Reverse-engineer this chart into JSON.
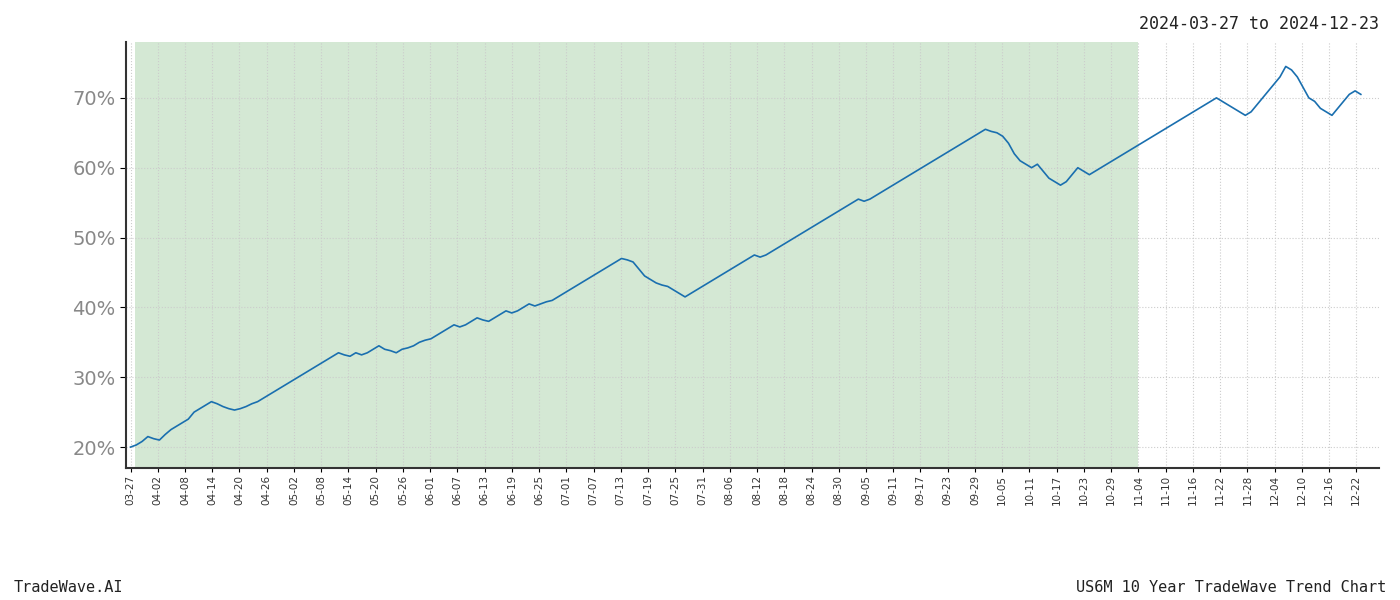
{
  "date_start": "2024-03-27",
  "date_end": "2024-12-23",
  "shade_start": "2024-03-28",
  "shade_end": "2024-11-04",
  "line_color": "#1a6faf",
  "shade_color": "#d4e8d4",
  "shade_alpha": 1.0,
  "background_color": "#ffffff",
  "grid_color": "#cccccc",
  "title_text": "2024-03-27 to 2024-12-23",
  "footer_left": "TradeWave.AI",
  "footer_right": "US6M 10 Year TradeWave Trend Chart",
  "yticks": [
    20,
    30,
    40,
    50,
    60,
    70
  ],
  "ylim": [
    17,
    78
  ],
  "line_width": 1.2,
  "font_size_title": 12,
  "font_size_footer": 11,
  "font_size_yticks": 14,
  "font_size_xticks": 7.5,
  "tick_interval_days": 6,
  "y_values": [
    20.0,
    20.3,
    20.8,
    21.5,
    21.2,
    21.0,
    21.8,
    22.5,
    23.0,
    23.5,
    24.0,
    25.0,
    25.5,
    26.0,
    26.5,
    26.2,
    25.8,
    25.5,
    25.3,
    25.5,
    25.8,
    26.2,
    26.5,
    27.0,
    27.5,
    28.0,
    28.5,
    29.0,
    29.5,
    30.0,
    30.5,
    31.0,
    31.5,
    32.0,
    32.5,
    33.0,
    33.5,
    33.2,
    33.0,
    33.5,
    33.2,
    33.5,
    34.0,
    34.5,
    34.0,
    33.8,
    33.5,
    34.0,
    34.2,
    34.5,
    35.0,
    35.3,
    35.5,
    36.0,
    36.5,
    37.0,
    37.5,
    37.2,
    37.5,
    38.0,
    38.5,
    38.2,
    38.0,
    38.5,
    39.0,
    39.5,
    39.2,
    39.5,
    40.0,
    40.5,
    40.2,
    40.5,
    40.8,
    41.0,
    41.5,
    42.0,
    42.5,
    43.0,
    43.5,
    44.0,
    44.5,
    45.0,
    45.5,
    46.0,
    46.5,
    47.0,
    46.8,
    46.5,
    45.5,
    44.5,
    44.0,
    43.5,
    43.2,
    43.0,
    42.5,
    42.0,
    41.5,
    42.0,
    42.5,
    43.0,
    43.5,
    44.0,
    44.5,
    45.0,
    45.5,
    46.0,
    46.5,
    47.0,
    47.5,
    47.2,
    47.5,
    48.0,
    48.5,
    49.0,
    49.5,
    50.0,
    50.5,
    51.0,
    51.5,
    52.0,
    52.5,
    53.0,
    53.5,
    54.0,
    54.5,
    55.0,
    55.5,
    55.2,
    55.5,
    56.0,
    56.5,
    57.0,
    57.5,
    58.0,
    58.5,
    59.0,
    59.5,
    60.0,
    60.5,
    61.0,
    61.5,
    62.0,
    62.5,
    63.0,
    63.5,
    64.0,
    64.5,
    65.0,
    65.5,
    65.2,
    65.0,
    64.5,
    63.5,
    62.0,
    61.0,
    60.5,
    60.0,
    60.5,
    59.5,
    58.5,
    58.0,
    57.5,
    58.0,
    59.0,
    60.0,
    59.5,
    59.0,
    59.5,
    60.0,
    60.5,
    61.0,
    61.5,
    62.0,
    62.5,
    63.0,
    63.5,
    64.0,
    64.5,
    65.0,
    65.5,
    66.0,
    66.5,
    67.0,
    67.5,
    68.0,
    68.5,
    69.0,
    69.5,
    70.0,
    69.5,
    69.0,
    68.5,
    68.0,
    67.5,
    68.0,
    69.0,
    70.0,
    71.0,
    72.0,
    73.0,
    74.5,
    74.0,
    73.0,
    71.5,
    70.0,
    69.5,
    68.5,
    68.0,
    67.5,
    68.5,
    69.5,
    70.5,
    71.0,
    70.5
  ]
}
